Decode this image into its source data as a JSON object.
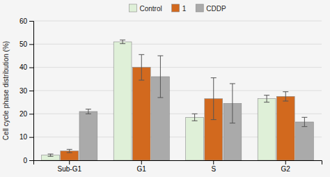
{
  "chart_data": {
    "type": "bar",
    "categories": [
      "Sub-G1",
      "G1",
      "S",
      "G2"
    ],
    "series": [
      {
        "name": "Control",
        "color": "#dff0d8",
        "values": [
          2.2,
          51.0,
          18.5,
          26.5
        ],
        "errors": [
          0.5,
          0.8,
          1.5,
          1.5
        ]
      },
      {
        "name": "1",
        "color": "#d2691e",
        "values": [
          4.0,
          40.0,
          26.5,
          27.5
        ],
        "errors": [
          0.7,
          5.5,
          9.0,
          2.0
        ]
      },
      {
        "name": "CDDP",
        "color": "#aaaaaa",
        "values": [
          21.0,
          36.0,
          24.5,
          16.5
        ],
        "errors": [
          1.0,
          9.0,
          8.5,
          2.0
        ]
      }
    ],
    "y_label": "Cell cycle phase distribution (%)",
    "ylim": [
      0,
      60
    ],
    "yticks": [
      0,
      10,
      20,
      30,
      40,
      50,
      60
    ],
    "grid": true,
    "legend": "top"
  }
}
